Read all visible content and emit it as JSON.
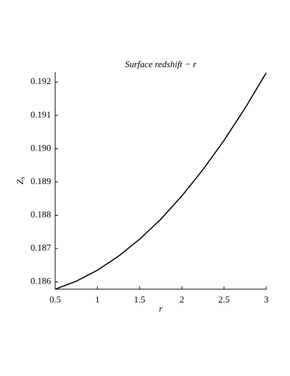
{
  "chart_data": {
    "type": "line",
    "title": "Surface redshift − r",
    "x_label": "r",
    "y_label": "Zs",
    "x": [
      0.5,
      0.75,
      1,
      1.25,
      1.5,
      1.75,
      2,
      2.25,
      2.5,
      2.75,
      3
    ],
    "series": [
      {
        "color": "#000000",
        "values": [
          0.18578,
          0.18602,
          0.18635,
          0.18677,
          0.18728,
          0.18788,
          0.18858,
          0.18937,
          0.19025,
          0.19122,
          0.19228
        ]
      }
    ],
    "xlim": [
      0.5,
      3
    ],
    "ylim": [
      0.18578,
      0.1923
    ],
    "xticks": [
      0.5,
      1,
      1.5,
      2,
      2.5,
      3
    ],
    "yticks": [
      0.186,
      0.187,
      0.188,
      0.189,
      {
        "value": 0.19,
        "label": "0.190"
      },
      0.191,
      0.192
    ],
    "grid": false
  }
}
